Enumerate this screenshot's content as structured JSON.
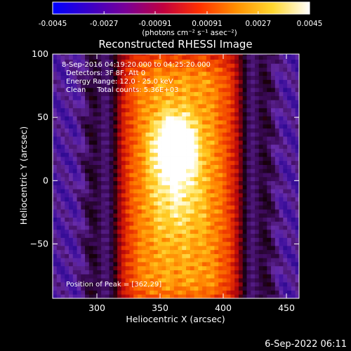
{
  "colorbar": {
    "ticks": [
      "-0.0045",
      "-0.0027",
      "-0.00091",
      "0.00091",
      "0.0027",
      "0.0045"
    ],
    "tick_values": [
      -0.0045,
      -0.0027,
      -0.00091,
      0.00091,
      0.0027,
      0.0045
    ],
    "range": [
      -0.0045,
      0.0045
    ],
    "unit_label": "(photons cm⁻² s⁻¹ asec⁻²)",
    "colors": [
      "#0000ff",
      "#3a00c8",
      "#7a0096",
      "#c00040",
      "#ff3000",
      "#ff9000",
      "#ffd830",
      "#ffffff"
    ]
  },
  "chart_data": {
    "type": "heatmap",
    "title": "Reconstructed RHESSI Image",
    "xlabel": "Heliocentric X (arcsec)",
    "ylabel": "Heliocentric Y (arcsec)",
    "xlim": [
      265,
      460
    ],
    "ylim": [
      -93,
      100
    ],
    "xticks": [
      300,
      350,
      400,
      450
    ],
    "xtick_labels": [
      "300",
      "350",
      "400",
      "450"
    ],
    "yticks": [
      -50,
      0,
      50,
      100
    ],
    "ytick_labels": [
      "−50",
      "0",
      "50",
      "100"
    ],
    "peak": {
      "x": 362,
      "y": 29
    },
    "annotations": {
      "time": "8-Sep-2016 04:19:20.000 to 04:25:20.000",
      "detectors": "Detectors: 3F 8F, Att 0",
      "energy": "Energy Range: 12.0 - 25.0 keV",
      "clean": "Clean     Total counts: 5.36E+03",
      "peak_text": "Position of Peak = [362,29]"
    }
  },
  "footer": {
    "timestamp": "6-Sep-2022 06:11"
  }
}
